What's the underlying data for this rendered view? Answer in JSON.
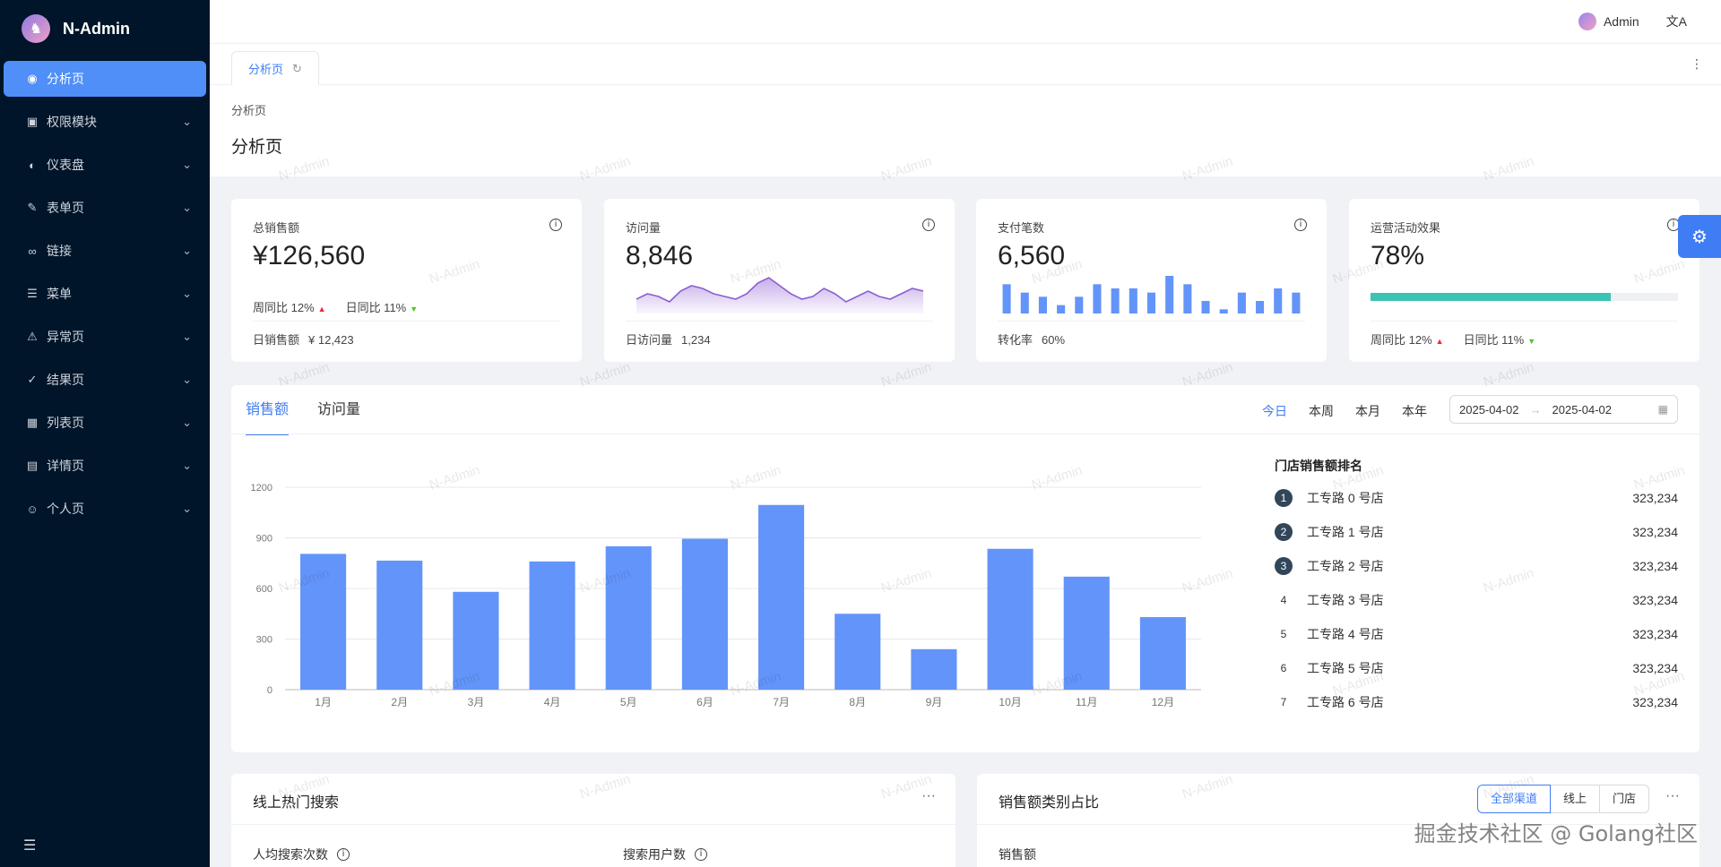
{
  "app": {
    "title": "N-Admin"
  },
  "sidebar": {
    "items": [
      {
        "icon": "dashboard-icon",
        "glyph": "◉",
        "label": "分析页",
        "active": true
      },
      {
        "icon": "permission-icon",
        "glyph": "▣",
        "label": "权限模块"
      },
      {
        "icon": "gauge-icon",
        "glyph": "◐",
        "label": "仪表盘"
      },
      {
        "icon": "form-icon",
        "glyph": "✎",
        "label": "表单页"
      },
      {
        "icon": "link-icon",
        "glyph": "∞",
        "label": "链接"
      },
      {
        "icon": "menu-icon",
        "glyph": "☰",
        "label": "菜单"
      },
      {
        "icon": "warning-icon",
        "glyph": "⚠",
        "label": "异常页"
      },
      {
        "icon": "check-circle-icon",
        "glyph": "✓",
        "label": "结果页"
      },
      {
        "icon": "table-icon",
        "glyph": "▦",
        "label": "列表页"
      },
      {
        "icon": "detail-icon",
        "glyph": "▤",
        "label": "详情页"
      },
      {
        "icon": "user-icon",
        "glyph": "☺",
        "label": "个人页"
      }
    ]
  },
  "header": {
    "user_name": "Admin",
    "lang_glyph": "文A"
  },
  "tabs": {
    "active_label": "分析页"
  },
  "page": {
    "breadcrumb": "分析页",
    "title": "分析页"
  },
  "stats": [
    {
      "title": "总销售额",
      "value": "¥126,560",
      "week_label": "周同比 12%",
      "day_label": "日同比 11%",
      "footer_label": "日销售额",
      "footer_value": "¥ 12,423"
    },
    {
      "title": "访问量",
      "value": "8,846",
      "footer_label": "日访问量",
      "footer_value": "1,234",
      "trend": [
        4,
        6,
        5,
        3,
        7,
        9,
        8,
        6,
        5,
        4,
        6,
        10,
        12,
        9,
        6,
        4,
        5,
        8,
        6,
        3,
        5,
        7,
        5,
        4,
        6,
        8,
        7
      ]
    },
    {
      "title": "支付笔数",
      "value": "6,560",
      "footer_label": "转化率",
      "footer_value": "60%",
      "bars": [
        7,
        5,
        4,
        2,
        4,
        7,
        6,
        6,
        5,
        9,
        7,
        3,
        1,
        5,
        3,
        6,
        5
      ]
    },
    {
      "title": "运营活动效果",
      "value": "78%",
      "progress": 0.78,
      "week_label": "周同比 12%",
      "day_label": "日同比 11%"
    }
  ],
  "main": {
    "tabs": [
      "销售额",
      "访问量"
    ],
    "ranges": [
      "今日",
      "本周",
      "本月",
      "本年"
    ],
    "date_start": "2025-04-02",
    "date_end": "2025-04-02",
    "rank_title": "门店销售额排名",
    "ranking": [
      {
        "no": "1",
        "name": "工专路 0 号店",
        "value": "323,234"
      },
      {
        "no": "2",
        "name": "工专路 1 号店",
        "value": "323,234"
      },
      {
        "no": "3",
        "name": "工专路 2 号店",
        "value": "323,234"
      },
      {
        "no": "4",
        "name": "工专路 3 号店",
        "value": "323,234"
      },
      {
        "no": "5",
        "name": "工专路 4 号店",
        "value": "323,234"
      },
      {
        "no": "6",
        "name": "工专路 5 号店",
        "value": "323,234"
      },
      {
        "no": "7",
        "name": "工专路 6 号店",
        "value": "323,234"
      }
    ]
  },
  "chart_data": {
    "type": "bar",
    "categories": [
      "1月",
      "2月",
      "3月",
      "4月",
      "5月",
      "6月",
      "7月",
      "8月",
      "9月",
      "10月",
      "11月",
      "12月"
    ],
    "values": [
      805,
      765,
      580,
      760,
      850,
      895,
      1095,
      450,
      240,
      835,
      670,
      430
    ],
    "yticks": [
      0,
      300,
      600,
      900,
      1200
    ],
    "ylim": [
      0,
      1200
    ],
    "color": "#6394f9"
  },
  "bottom": {
    "search_title": "线上热门搜索",
    "search_sub1": "人均搜索次数",
    "search_sub2": "搜索用户数",
    "category_title": "销售额类别占比",
    "category_segments": [
      "全部渠道",
      "线上",
      "门店"
    ],
    "category_sub": "销售额"
  },
  "watermark": "N-Admin",
  "community": "掘金技术社区 @ Golang社区"
}
